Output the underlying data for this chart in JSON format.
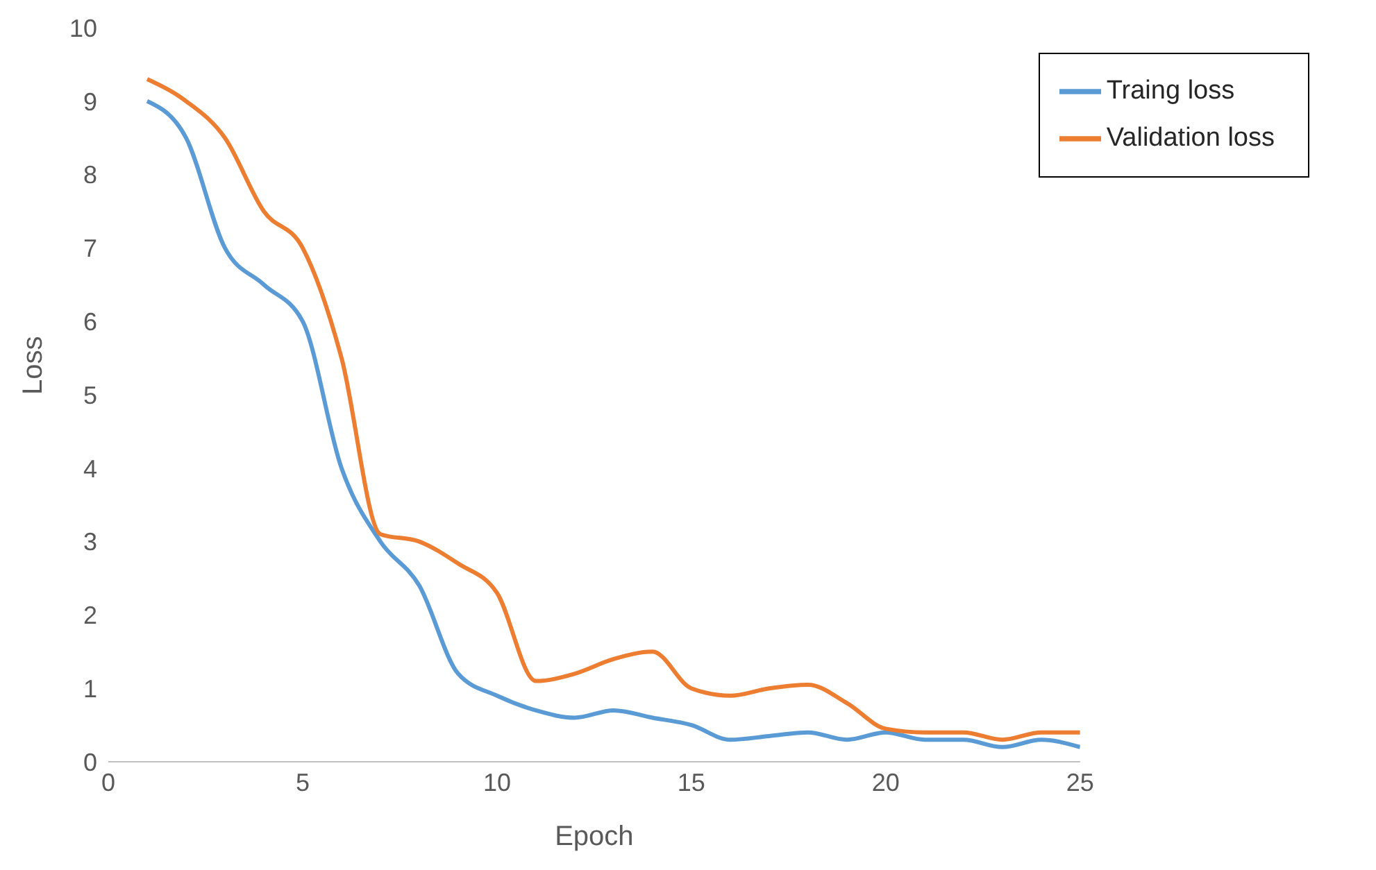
{
  "chart_data": {
    "type": "line",
    "xlabel": "Epoch",
    "ylabel": "Loss",
    "x": [
      1,
      2,
      3,
      4,
      5,
      6,
      7,
      8,
      9,
      10,
      11,
      12,
      13,
      14,
      15,
      16,
      17,
      18,
      19,
      20,
      21,
      22,
      23,
      24,
      25
    ],
    "series": [
      {
        "name": "Traing loss",
        "color": "#5b9bd5",
        "values": [
          9.0,
          8.5,
          7.0,
          6.5,
          6.0,
          4.0,
          3.0,
          2.4,
          1.2,
          0.9,
          0.7,
          0.6,
          0.7,
          0.6,
          0.5,
          0.3,
          0.35,
          0.4,
          0.3,
          0.4,
          0.3,
          0.3,
          0.2,
          0.3,
          0.2
        ]
      },
      {
        "name": "Validation loss",
        "color": "#ed7d31",
        "values": [
          9.3,
          9.0,
          8.5,
          7.5,
          7.0,
          5.5,
          3.1,
          3.0,
          2.7,
          2.3,
          1.1,
          1.2,
          1.4,
          1.5,
          1.0,
          0.9,
          1.0,
          1.05,
          0.8,
          0.45,
          0.4,
          0.4,
          0.3,
          0.4,
          0.4
        ]
      }
    ],
    "xlim": [
      0,
      25
    ],
    "xticks": [
      0,
      5,
      10,
      15,
      20,
      25
    ],
    "ylim": [
      0,
      10
    ],
    "yticks": [
      0,
      1,
      2,
      3,
      4,
      5,
      6,
      7,
      8,
      9,
      10
    ],
    "grid": false,
    "legend": "top right",
    "marker": "none",
    "line_style": "solid"
  }
}
